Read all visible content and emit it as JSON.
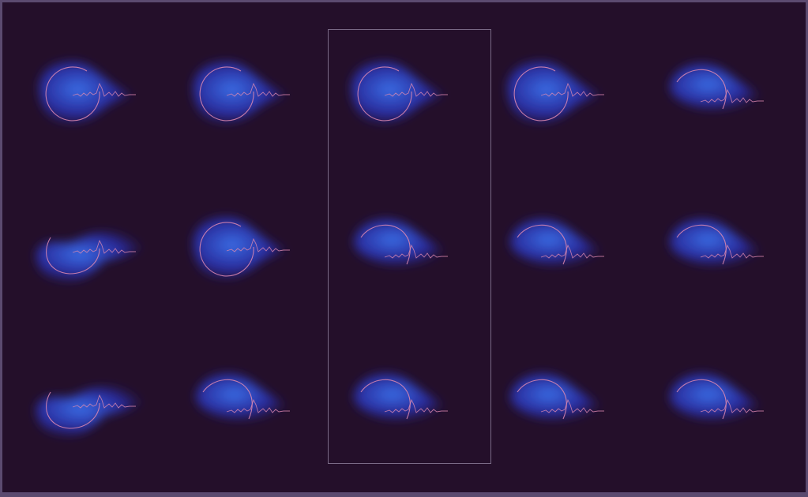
{
  "colors": {
    "background": "#240f2a",
    "frame_border": "#5b4a70",
    "glow_core": "#3b6fe6",
    "glow_edge": "#2a2fb0",
    "trace": "#e08ab0",
    "selection": "#7a6a86"
  },
  "grid": {
    "rows": 3,
    "columns": 5,
    "selected_column": 3,
    "cells": [
      {
        "row": 1,
        "col": 1,
        "shape": "round",
        "arc": "full"
      },
      {
        "row": 1,
        "col": 2,
        "shape": "round",
        "arc": "full"
      },
      {
        "row": 1,
        "col": 3,
        "shape": "round",
        "arc": "full"
      },
      {
        "row": 1,
        "col": 4,
        "shape": "round",
        "arc": "full"
      },
      {
        "row": 1,
        "col": 5,
        "shape": "tilted",
        "arc": "partial"
      },
      {
        "row": 2,
        "col": 1,
        "shape": "wide",
        "arc": "partial"
      },
      {
        "row": 2,
        "col": 2,
        "shape": "round",
        "arc": "full"
      },
      {
        "row": 2,
        "col": 3,
        "shape": "tilted",
        "arc": "partial"
      },
      {
        "row": 2,
        "col": 4,
        "shape": "tilted",
        "arc": "partial"
      },
      {
        "row": 2,
        "col": 5,
        "shape": "tilted",
        "arc": "partial"
      },
      {
        "row": 3,
        "col": 1,
        "shape": "wide",
        "arc": "partial"
      },
      {
        "row": 3,
        "col": 2,
        "shape": "tilted",
        "arc": "partial"
      },
      {
        "row": 3,
        "col": 3,
        "shape": "tilted",
        "arc": "partial"
      },
      {
        "row": 3,
        "col": 4,
        "shape": "tilted",
        "arc": "partial"
      },
      {
        "row": 3,
        "col": 5,
        "shape": "tilted",
        "arc": "partial"
      }
    ]
  }
}
